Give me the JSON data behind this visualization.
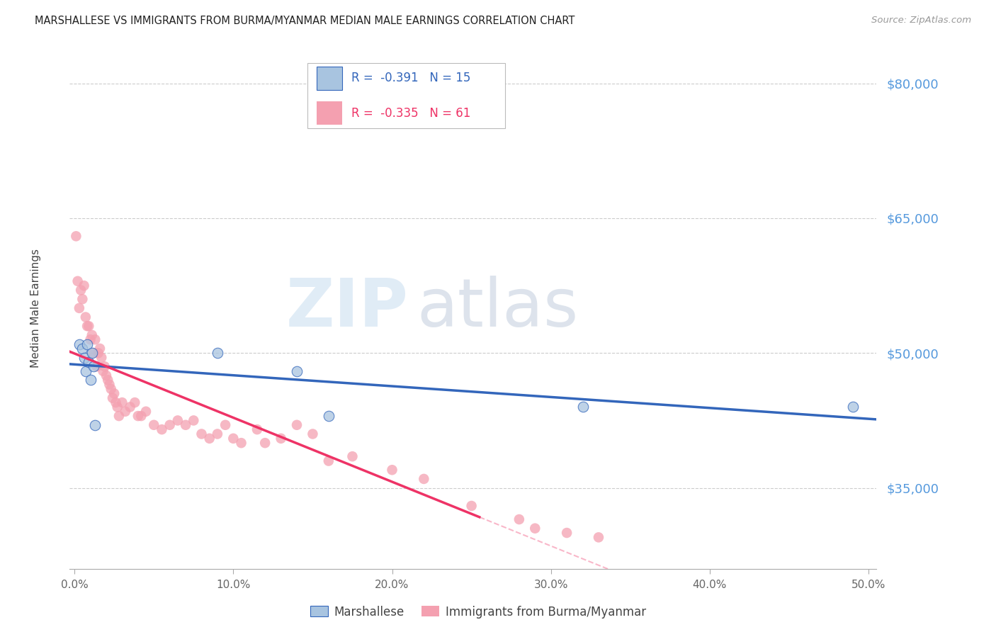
{
  "title": "MARSHALLESE VS IMMIGRANTS FROM BURMA/MYANMAR MEDIAN MALE EARNINGS CORRELATION CHART",
  "source": "Source: ZipAtlas.com",
  "ylabel": "Median Male Earnings",
  "yticks": [
    35000,
    50000,
    65000,
    80000
  ],
  "ytick_labels": [
    "$35,000",
    "$50,000",
    "$65,000",
    "$80,000"
  ],
  "ymin": 26000,
  "ymax": 84000,
  "xmin": -0.003,
  "xmax": 0.505,
  "blue_R": -0.391,
  "blue_N": 15,
  "pink_R": -0.335,
  "pink_N": 61,
  "legend_label_blue": "Marshallese",
  "legend_label_pink": "Immigrants from Burma/Myanmar",
  "blue_color": "#A8C4E0",
  "pink_color": "#F4A0B0",
  "line_blue_color": "#3366BB",
  "line_pink_color": "#EE3366",
  "blue_scatter_x": [
    0.003,
    0.005,
    0.006,
    0.007,
    0.008,
    0.009,
    0.01,
    0.011,
    0.012,
    0.013,
    0.09,
    0.14,
    0.16,
    0.32,
    0.49
  ],
  "blue_scatter_y": [
    51000,
    50500,
    49500,
    48000,
    51000,
    49000,
    47000,
    50000,
    48500,
    42000,
    50000,
    48000,
    43000,
    44000,
    44000
  ],
  "pink_scatter_x": [
    0.001,
    0.002,
    0.003,
    0.004,
    0.005,
    0.006,
    0.007,
    0.008,
    0.009,
    0.01,
    0.011,
    0.012,
    0.013,
    0.014,
    0.015,
    0.016,
    0.017,
    0.018,
    0.019,
    0.02,
    0.021,
    0.022,
    0.023,
    0.024,
    0.025,
    0.026,
    0.027,
    0.028,
    0.03,
    0.032,
    0.035,
    0.038,
    0.04,
    0.042,
    0.045,
    0.05,
    0.055,
    0.06,
    0.065,
    0.07,
    0.075,
    0.08,
    0.085,
    0.09,
    0.095,
    0.1,
    0.105,
    0.115,
    0.12,
    0.13,
    0.14,
    0.15,
    0.16,
    0.175,
    0.2,
    0.22,
    0.25,
    0.28,
    0.29,
    0.31,
    0.33
  ],
  "pink_scatter_y": [
    63000,
    58000,
    55000,
    57000,
    56000,
    57500,
    54000,
    53000,
    53000,
    51500,
    52000,
    50000,
    51500,
    48500,
    50000,
    50500,
    49500,
    48000,
    48500,
    47500,
    47000,
    46500,
    46000,
    45000,
    45500,
    44500,
    44000,
    43000,
    44500,
    43500,
    44000,
    44500,
    43000,
    43000,
    43500,
    42000,
    41500,
    42000,
    42500,
    42000,
    42500,
    41000,
    40500,
    41000,
    42000,
    40500,
    40000,
    41500,
    40000,
    40500,
    42000,
    41000,
    38000,
    38500,
    37000,
    36000,
    33000,
    31500,
    30500,
    30000,
    29500
  ],
  "background_color": "#FFFFFF",
  "grid_color": "#CCCCCC",
  "xticks": [
    0.0,
    0.1,
    0.2,
    0.3,
    0.4,
    0.5
  ],
  "xtick_labels": [
    "0.0%",
    "10.0%",
    "20.0%",
    "30.0%",
    "40.0%",
    "50.0%"
  ]
}
